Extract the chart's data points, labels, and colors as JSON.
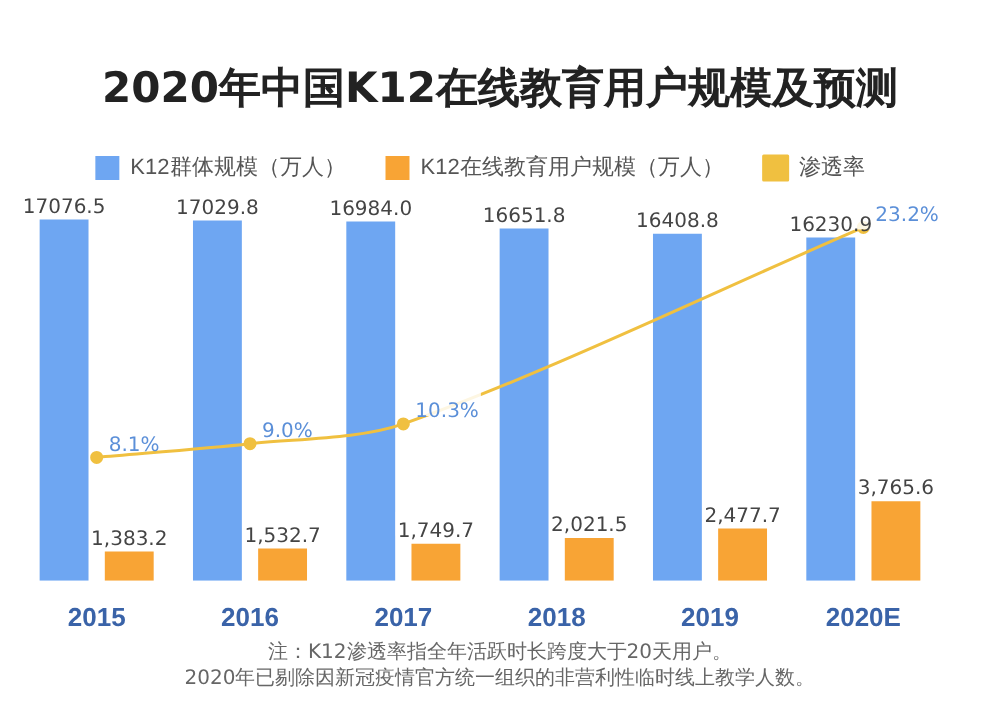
{
  "chart_data": {
    "type": "bar",
    "title": "2020年中国K12在线教育用户规模及预测",
    "categories": [
      "2015",
      "2016",
      "2017",
      "2018",
      "2019",
      "2020E"
    ],
    "series": [
      {
        "name": "K12群体规模（万人）",
        "color": "#6ea6f2",
        "values": [
          17076.5,
          17029.8,
          16984.0,
          16651.8,
          16408.8,
          16230.9
        ],
        "value_labels": [
          "17076.5",
          "17029.8",
          "16984.0",
          "16651.8",
          "16408.8",
          "16230.9"
        ]
      },
      {
        "name": "K12在线教育用户规模（万人）",
        "color": "#f8a435",
        "values": [
          1383.2,
          1532.7,
          1749.7,
          2021.5,
          2477.7,
          3765.6
        ],
        "value_labels": [
          "1,383.2",
          "1,532.7",
          "1,749.7",
          "2,021.5",
          "2,477.7",
          "3,765.6"
        ]
      },
      {
        "name": "渗透率",
        "type": "line",
        "axis": "y2",
        "color": "#f0c040",
        "values": [
          8.1,
          9.0,
          10.3,
          null,
          null,
          23.2
        ],
        "value_labels": [
          "8.1%",
          "9.0%",
          "10.3%",
          null,
          null,
          "23.2%"
        ]
      }
    ],
    "legend": "top",
    "marker": "circle",
    "grid": false,
    "tick_labels": "x",
    "annotations": [
      "注：K12渗透率指全年活跃时长跨度大于20天用户。",
      "2020年已剔除因新冠疫情官方统一组织的非营利性临时线上教学人数。"
    ]
  }
}
